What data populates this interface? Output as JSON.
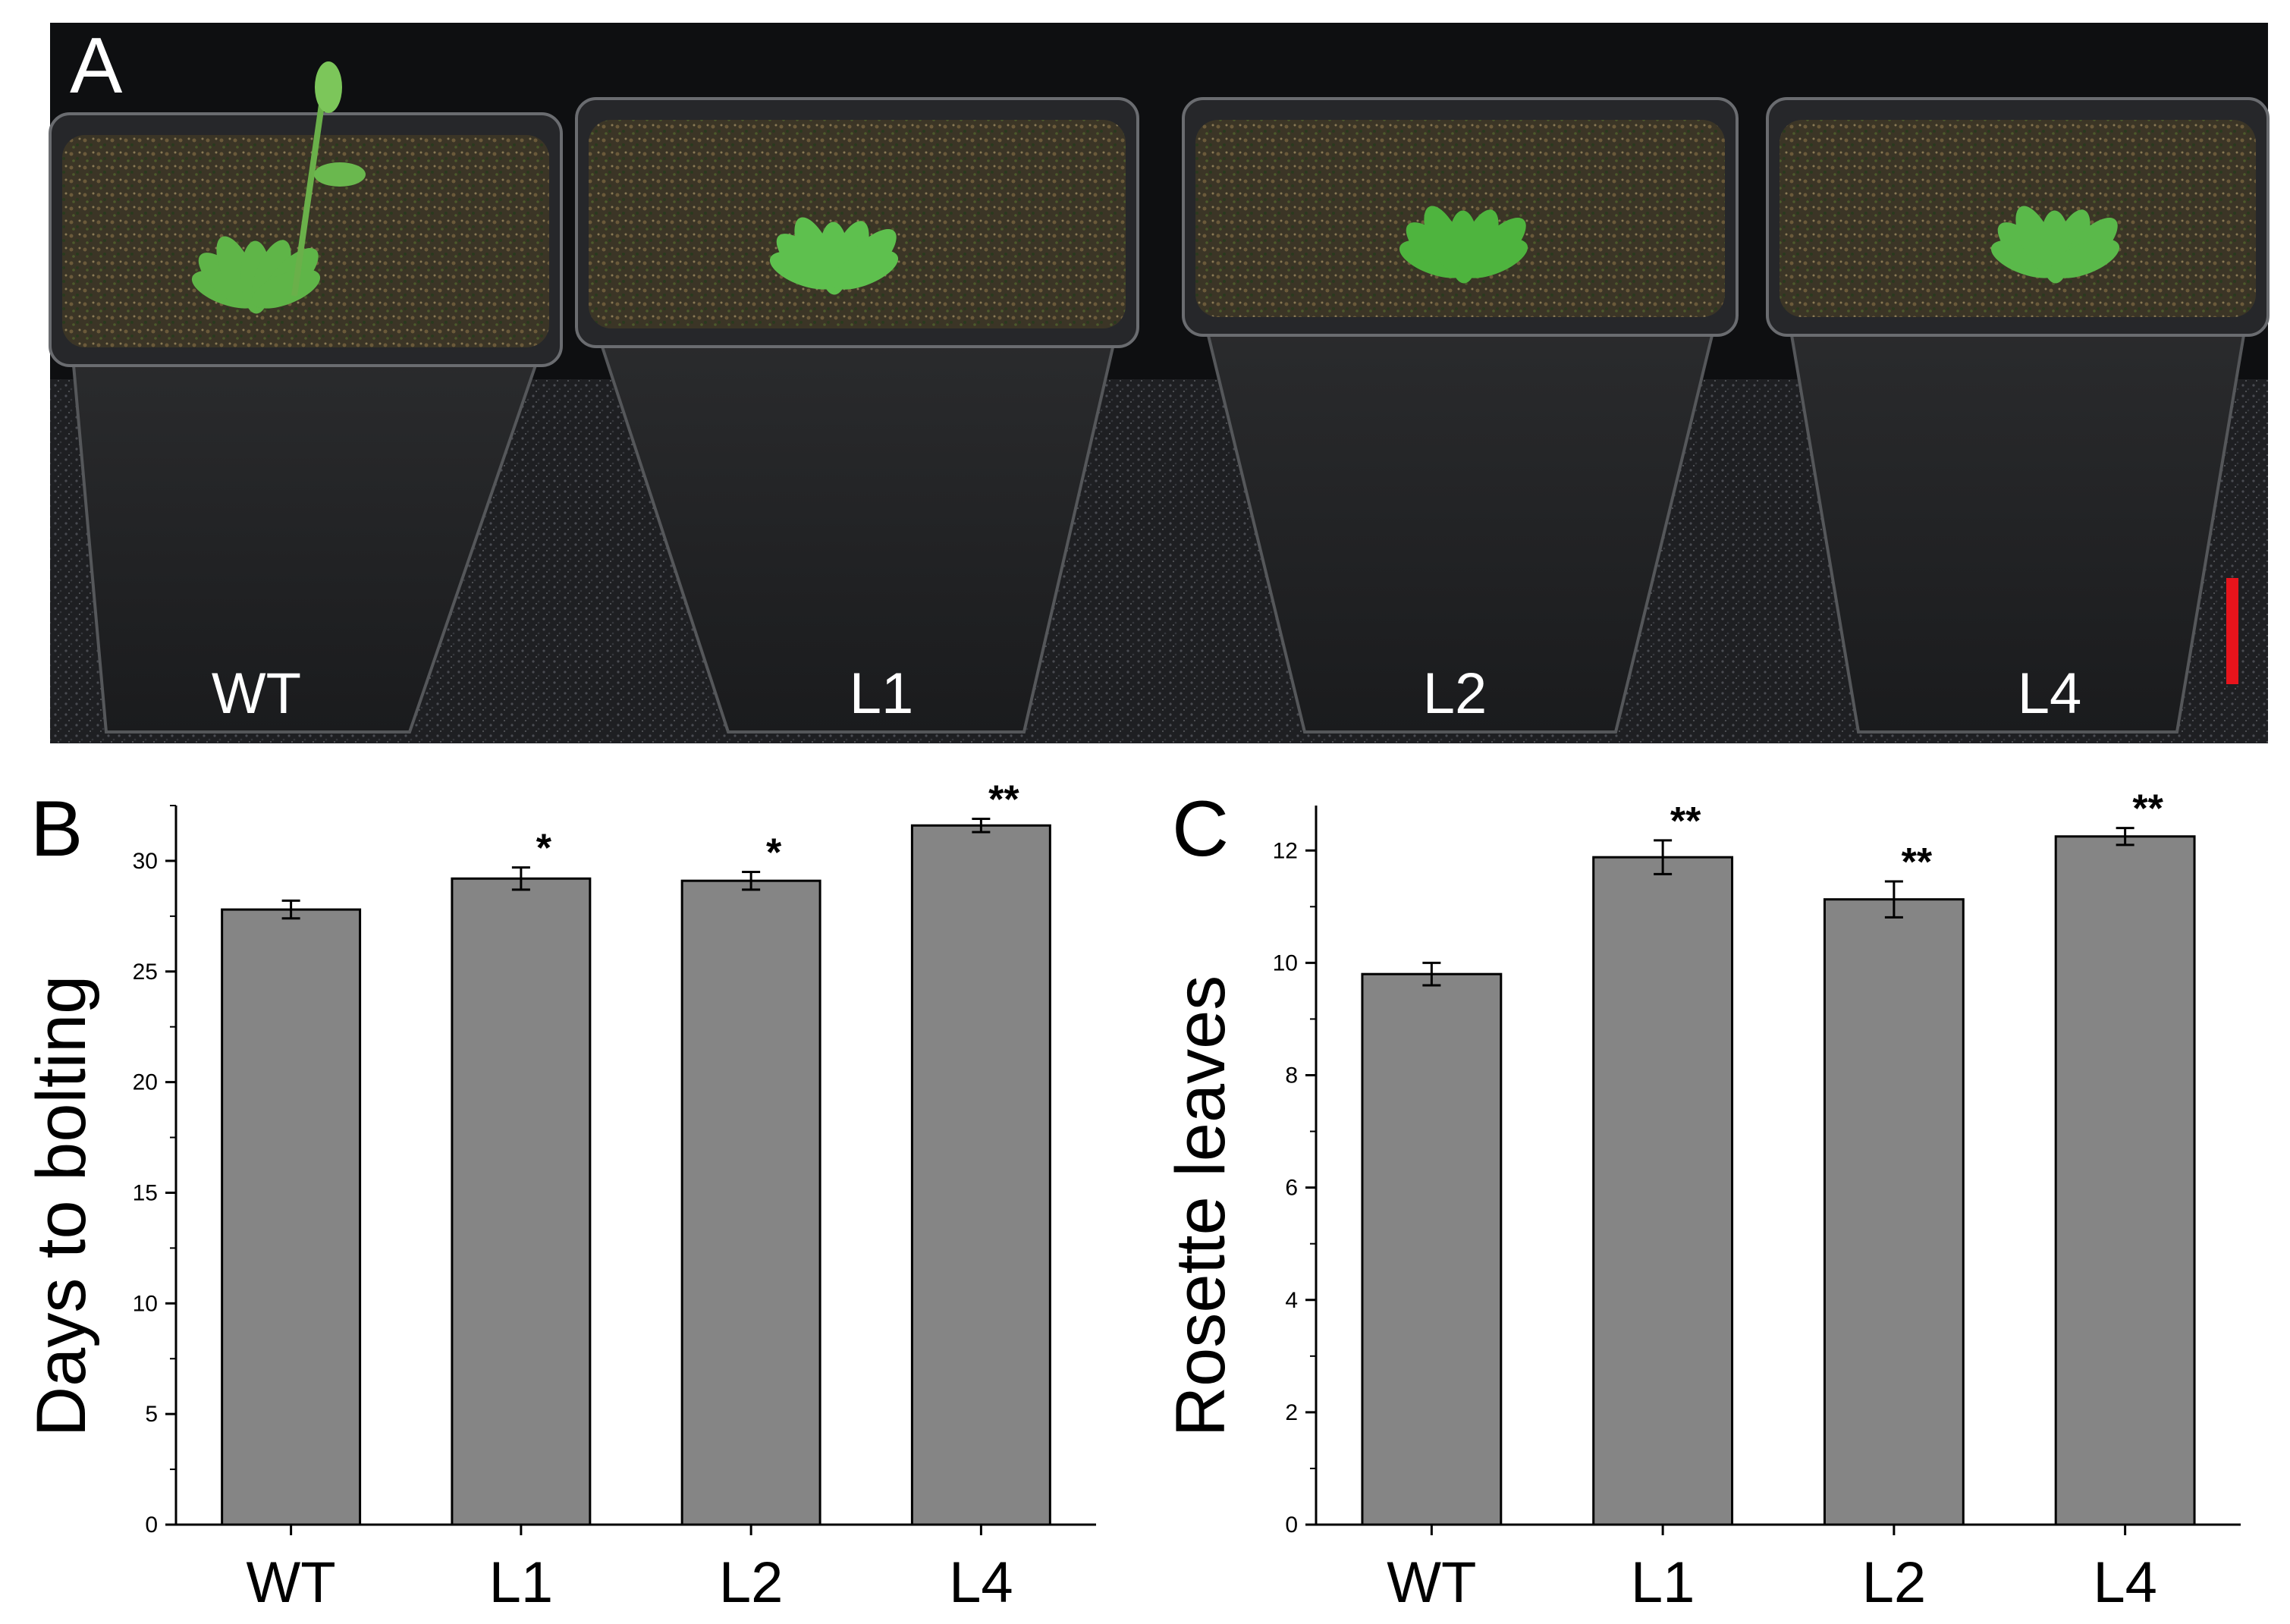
{
  "figure": {
    "panel_a": {
      "letter": "A",
      "pot_labels": [
        "WT",
        "L1",
        "L2",
        "L4"
      ],
      "scale_bar_color": "#e8141c"
    },
    "bar_color": "#858585"
  },
  "chart_data": [
    {
      "type": "bar",
      "panel": "B",
      "categories": [
        "WT",
        "L1",
        "L2",
        "L4"
      ],
      "values": [
        27.8,
        29.2,
        29.1,
        31.6
      ],
      "errors": [
        0.4,
        0.5,
        0.4,
        0.3
      ],
      "significance": [
        "",
        "*",
        "*",
        "**"
      ],
      "xlabel": "",
      "ylabel": "Days to bolting",
      "ylim": [
        0,
        32.5
      ],
      "yticks": [
        0,
        5,
        10,
        15,
        20,
        25,
        30
      ],
      "grid": false
    },
    {
      "type": "bar",
      "panel": "C",
      "categories": [
        "WT",
        "L1",
        "L2",
        "L4"
      ],
      "values": [
        9.8,
        11.88,
        11.13,
        12.25
      ],
      "errors": [
        0.2,
        0.3,
        0.32,
        0.15
      ],
      "significance": [
        "",
        "**",
        "**",
        "**"
      ],
      "xlabel": "",
      "ylabel": "Rosette leaves",
      "ylim": [
        0,
        12.8
      ],
      "yticks": [
        0,
        2,
        4,
        6,
        8,
        10,
        12
      ],
      "grid": false
    }
  ]
}
